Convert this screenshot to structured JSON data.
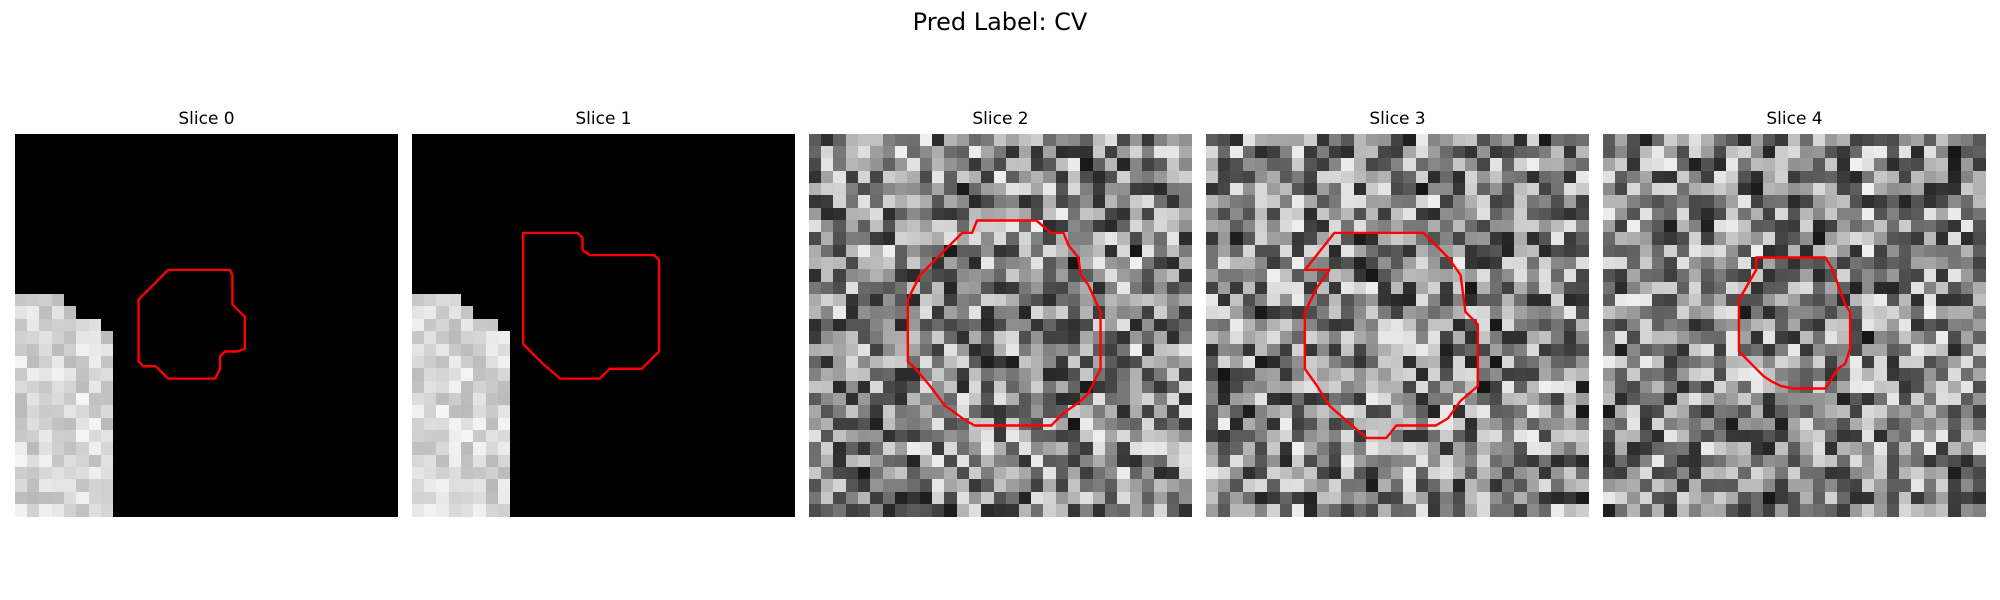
{
  "figure": {
    "title": "Pred Label: CV"
  },
  "panels": [
    {
      "title": "Slice 0",
      "kind": "mostly-black",
      "seed": 11
    },
    {
      "title": "Slice 1",
      "kind": "mostly-black",
      "seed": 23
    },
    {
      "title": "Slice 2",
      "kind": "noise",
      "seed": 37
    },
    {
      "title": "Slice 3",
      "kind": "noise",
      "seed": 41
    },
    {
      "title": "Slice 4",
      "kind": "noise",
      "seed": 53
    }
  ],
  "colors": {
    "contour": "#ff0000",
    "background": "#ffffff"
  }
}
